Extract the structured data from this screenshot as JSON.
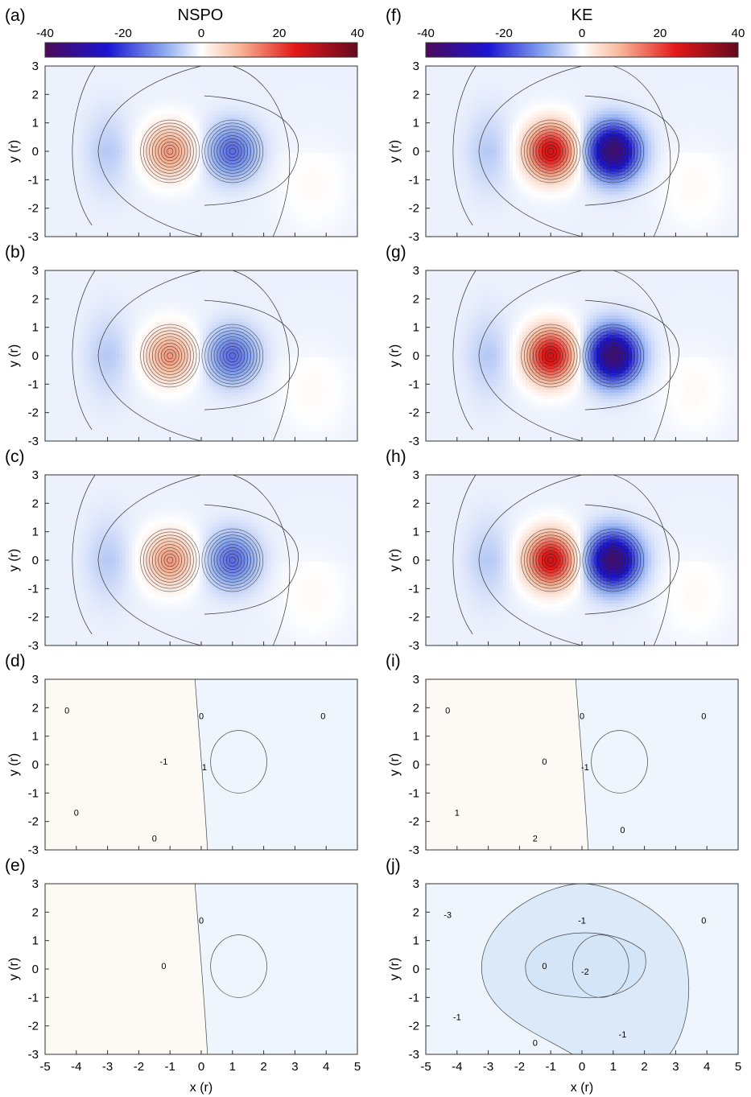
{
  "column_titles": [
    "NSPO",
    "KE"
  ],
  "colorbar": {
    "min": -40,
    "max": 40,
    "ticks": [
      "-40",
      "-20",
      "0",
      "20",
      "40"
    ],
    "colors": {
      "neg_dark": "#4d0a5a",
      "neg": "#1a14d2",
      "neg_light": "#8aa8ef",
      "zero": "#ffffff",
      "pos_light": "#f7b89a",
      "pos": "#e31818",
      "pos_dark": "#640a1e"
    }
  },
  "axes": {
    "xlabel": "x (r)",
    "ylabel": "y (r)",
    "xticks": [
      "-5",
      "-4",
      "-3",
      "-2",
      "-1",
      "0",
      "1",
      "2",
      "3",
      "4",
      "5"
    ],
    "yticks": [
      "3",
      "2",
      "1",
      "0",
      "-1",
      "-2",
      "-3"
    ]
  },
  "chart_data": [
    {
      "type": "heatmap",
      "panel": "(a)",
      "title": "NSPO",
      "xlim": [
        -5,
        5
      ],
      "ylim": [
        -3,
        3
      ],
      "pattern": "dipole",
      "peak_pos": 14,
      "peak_neg": -14,
      "contour_labels": []
    },
    {
      "type": "heatmap",
      "panel": "(b)",
      "xlim": [
        -5,
        5
      ],
      "ylim": [
        -3,
        3
      ],
      "pattern": "dipole",
      "peak_pos": 14,
      "peak_neg": -14,
      "contour_labels": []
    },
    {
      "type": "heatmap",
      "panel": "(c)",
      "xlim": [
        -5,
        5
      ],
      "ylim": [
        -3,
        3
      ],
      "pattern": "dipole",
      "peak_pos": 14,
      "peak_neg": -14,
      "contour_labels": []
    },
    {
      "type": "heatmap",
      "panel": "(d)",
      "xlim": [
        -5,
        5
      ],
      "ylim": [
        -3,
        3
      ],
      "pattern": "difference",
      "contour_labels": [
        "-1",
        "0",
        "1",
        "0",
        "0",
        "0",
        "0"
      ]
    },
    {
      "type": "heatmap",
      "panel": "(e)",
      "xlim": [
        -5,
        5
      ],
      "ylim": [
        -3,
        3
      ],
      "pattern": "difference",
      "contour_labels": [
        "0",
        "0"
      ]
    },
    {
      "type": "heatmap",
      "panel": "(f)",
      "title": "KE",
      "xlim": [
        -5,
        5
      ],
      "ylim": [
        -3,
        3
      ],
      "pattern": "dipole",
      "peak_pos": 28,
      "peak_neg": -35,
      "contour_labels": []
    },
    {
      "type": "heatmap",
      "panel": "(g)",
      "xlim": [
        -5,
        5
      ],
      "ylim": [
        -3,
        3
      ],
      "pattern": "dipole",
      "peak_pos": 28,
      "peak_neg": -35,
      "contour_labels": []
    },
    {
      "type": "heatmap",
      "panel": "(h)",
      "xlim": [
        -5,
        5
      ],
      "ylim": [
        -3,
        3
      ],
      "pattern": "dipole",
      "peak_pos": 28,
      "peak_neg": -35,
      "contour_labels": []
    },
    {
      "type": "heatmap",
      "panel": "(i)",
      "xlim": [
        -5,
        5
      ],
      "ylim": [
        -3,
        3
      ],
      "pattern": "difference",
      "contour_labels": [
        "0",
        "0",
        "-1",
        "0",
        "1",
        "2",
        "0",
        "0"
      ]
    },
    {
      "type": "heatmap",
      "panel": "(j)",
      "xlim": [
        -5,
        5
      ],
      "ylim": [
        -3,
        3
      ],
      "pattern": "difference",
      "contour_labels": [
        "0",
        "-1",
        "-2",
        "-3",
        "-1",
        "0",
        "0",
        "-1"
      ]
    }
  ]
}
